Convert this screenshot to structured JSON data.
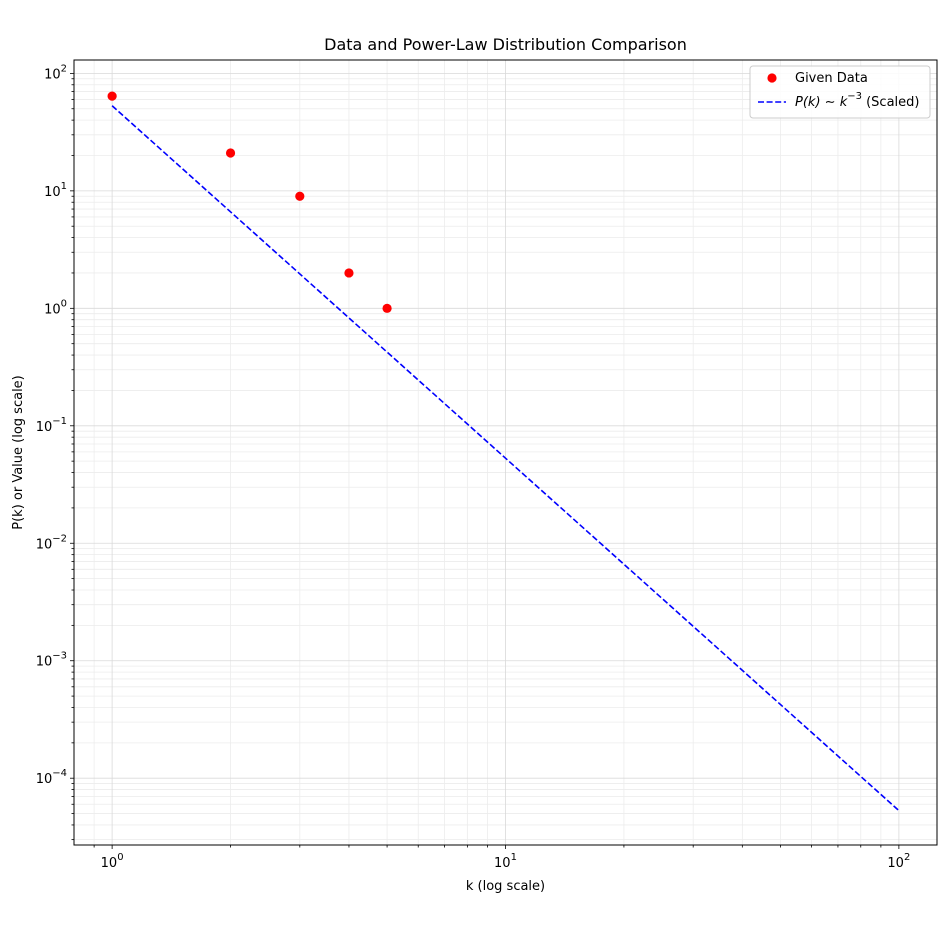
{
  "chart_data": {
    "type": "scatter",
    "title": "Data and Power-Law Distribution Comparison",
    "xlabel": "k (log scale)",
    "ylabel": "P(k) or Value (log scale)",
    "xscale": "log",
    "yscale": "log",
    "xlim": [
      0.8,
      125
    ],
    "ylim": [
      2.7e-05,
      130
    ],
    "grid": true,
    "legend_position": "top-right",
    "x_ticks": [
      {
        "value": 1,
        "base": "10",
        "exp": "0"
      },
      {
        "value": 10,
        "base": "10",
        "exp": "1"
      },
      {
        "value": 100,
        "base": "10",
        "exp": "2"
      }
    ],
    "y_ticks": [
      {
        "value": 0.0001,
        "base": "10",
        "exp": "−4"
      },
      {
        "value": 0.001,
        "base": "10",
        "exp": "−3"
      },
      {
        "value": 0.01,
        "base": "10",
        "exp": "−2"
      },
      {
        "value": 0.1,
        "base": "10",
        "exp": "−1"
      },
      {
        "value": 1,
        "base": "10",
        "exp": "0"
      },
      {
        "value": 10,
        "base": "10",
        "exp": "1"
      },
      {
        "value": 100,
        "base": "10",
        "exp": "2"
      }
    ],
    "series": [
      {
        "name": "Given Data",
        "kind": "scatter",
        "color": "#ff0000",
        "x": [
          1,
          2,
          3,
          4,
          5
        ],
        "y": [
          64,
          21,
          9,
          2,
          1
        ]
      },
      {
        "name": "P(k) ~ k^-3 (Scaled)",
        "legend_math": {
          "lhs": "P(k)",
          "op": "∼",
          "base": "k",
          "exp": "−3",
          "suffix": "(Scaled)"
        },
        "kind": "line",
        "style": "dashed",
        "color": "#0000ff",
        "x": [
          1,
          100
        ],
        "y": [
          53,
          5.3e-05
        ]
      }
    ]
  }
}
